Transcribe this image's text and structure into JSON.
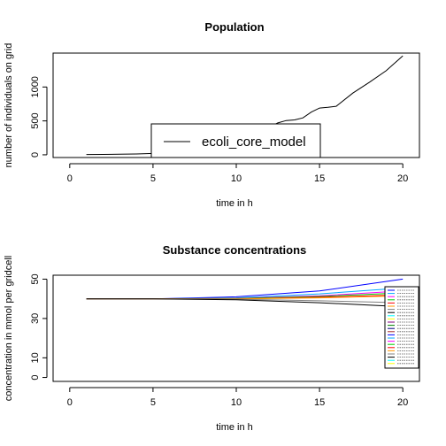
{
  "chart_data": [
    {
      "type": "line",
      "title": "Population",
      "xlabel": "time in h",
      "ylabel": "number of individuals on grid",
      "xlim": [
        -1,
        21
      ],
      "ylim": [
        -40,
        1500
      ],
      "xticks": [
        0,
        5,
        10,
        15,
        20
      ],
      "yticks": [
        0,
        500,
        1000
      ],
      "grid": false,
      "legend": {
        "position": "bottom-center",
        "entries": [
          "ecoli_core_model"
        ]
      },
      "series": [
        {
          "name": "ecoli_core_model",
          "color": "#000000",
          "x": [
            1,
            2,
            3,
            4,
            5,
            6,
            7,
            8,
            9,
            10,
            11,
            12,
            12.5,
            13,
            13.5,
            14,
            14.5,
            15,
            15.5,
            16,
            17,
            18,
            19,
            20
          ],
          "y": [
            5,
            6,
            8,
            12,
            20,
            35,
            60,
            110,
            160,
            230,
            310,
            410,
            470,
            505,
            515,
            545,
            630,
            690,
            700,
            715,
            910,
            1070,
            1240,
            1460
          ]
        }
      ]
    },
    {
      "type": "line",
      "title": "Substance concentrations",
      "xlabel": "time in h",
      "ylabel": "concentration in mmol per gridcell",
      "xlim": [
        -1,
        21
      ],
      "ylim": [
        -2,
        52
      ],
      "xticks": [
        0,
        5,
        10,
        15,
        20
      ],
      "yticks": [
        0,
        10,
        30,
        50
      ],
      "grid": false,
      "legend": {
        "position": "bottom-right",
        "entries": []
      },
      "series": [
        {
          "color": "#0000ff",
          "x": [
            1,
            5,
            10,
            15,
            20
          ],
          "y": [
            40,
            40,
            41,
            44,
            50
          ]
        },
        {
          "color": "#00aaff",
          "x": [
            1,
            5,
            10,
            15,
            20
          ],
          "y": [
            40,
            40,
            40.5,
            42.5,
            45.5
          ]
        },
        {
          "color": "#ff00ff",
          "x": [
            1,
            5,
            10,
            15,
            20
          ],
          "y": [
            40,
            40,
            40.3,
            41.5,
            44
          ]
        },
        {
          "color": "#00cc00",
          "x": [
            1,
            5,
            10,
            15,
            20
          ],
          "y": [
            40,
            40,
            40.2,
            41.2,
            43
          ]
        },
        {
          "color": "#ff0000",
          "x": [
            1,
            5,
            10,
            15,
            20
          ],
          "y": [
            40,
            40,
            40,
            40.8,
            42
          ]
        },
        {
          "color": "#ff9900",
          "x": [
            1,
            5,
            10,
            15,
            20
          ],
          "y": [
            40,
            40,
            40,
            40.5,
            41.5
          ]
        },
        {
          "color": "#808080",
          "x": [
            1,
            5,
            10,
            15,
            20
          ],
          "y": [
            40,
            40,
            39.8,
            39,
            38
          ]
        },
        {
          "color": "#000000",
          "x": [
            1,
            5,
            10,
            15,
            20
          ],
          "y": [
            40,
            40,
            39.5,
            38,
            36
          ]
        }
      ]
    }
  ]
}
